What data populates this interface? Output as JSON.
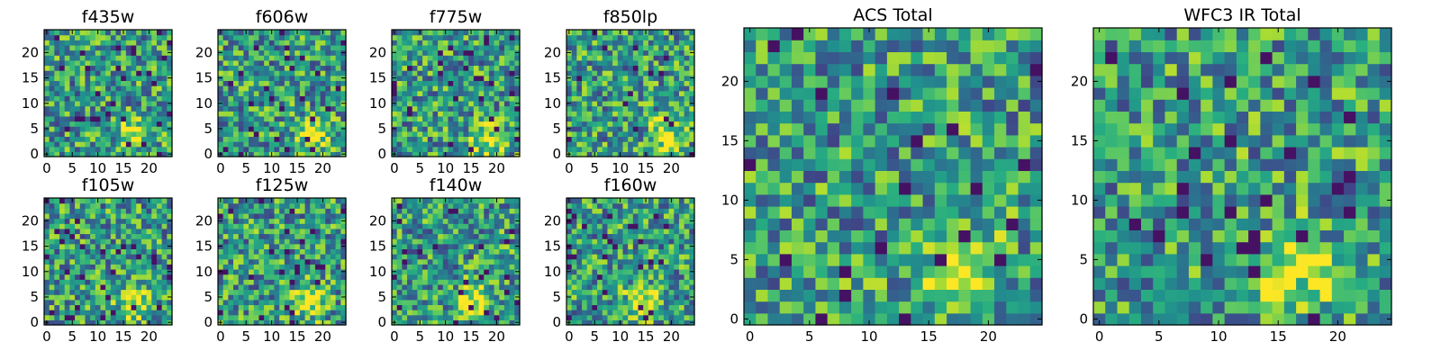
{
  "figure": {
    "colormap": "viridis",
    "background": "#ffffff"
  },
  "chart_data": [
    {
      "type": "heatmap",
      "title": "f435w",
      "grid": [
        25,
        25
      ],
      "xlim": [
        0,
        24
      ],
      "ylim": [
        0,
        24
      ],
      "xticks": [
        0,
        5,
        10,
        15,
        20
      ],
      "yticks": [
        0,
        5,
        10,
        15,
        20
      ],
      "bright_spot": [
        17,
        4
      ],
      "seed": 11
    },
    {
      "type": "heatmap",
      "title": "f606w",
      "grid": [
        25,
        25
      ],
      "xlim": [
        0,
        24
      ],
      "ylim": [
        0,
        24
      ],
      "xticks": [
        0,
        5,
        10,
        15,
        20
      ],
      "yticks": [
        0,
        5,
        10,
        15,
        20
      ],
      "bright_spot": [
        18,
        4
      ],
      "seed": 23
    },
    {
      "type": "heatmap",
      "title": "f775w",
      "grid": [
        25,
        25
      ],
      "xlim": [
        0,
        24
      ],
      "ylim": [
        0,
        24
      ],
      "xticks": [
        0,
        5,
        10,
        15,
        20
      ],
      "yticks": [
        0,
        5,
        10,
        15,
        20
      ],
      "bright_spot": [
        18,
        3
      ],
      "seed": 37
    },
    {
      "type": "heatmap",
      "title": "f850lp",
      "grid": [
        25,
        25
      ],
      "xlim": [
        0,
        24
      ],
      "ylim": [
        0,
        24
      ],
      "xticks": [
        0,
        5,
        10,
        15,
        20
      ],
      "yticks": [
        0,
        5,
        10,
        15,
        20
      ],
      "bright_spot": [
        19,
        4
      ],
      "seed": 41
    },
    {
      "type": "heatmap",
      "title": "f105w",
      "grid": [
        25,
        25
      ],
      "xlim": [
        0,
        24
      ],
      "ylim": [
        0,
        24
      ],
      "xticks": [
        0,
        5,
        10,
        15,
        20
      ],
      "yticks": [
        0,
        5,
        10,
        15,
        20
      ],
      "bright_spot": [
        17,
        4
      ],
      "seed": 53
    },
    {
      "type": "heatmap",
      "title": "f125w",
      "grid": [
        25,
        25
      ],
      "xlim": [
        0,
        24
      ],
      "ylim": [
        0,
        24
      ],
      "xticks": [
        0,
        5,
        10,
        15,
        20
      ],
      "yticks": [
        0,
        5,
        10,
        15,
        20
      ],
      "bright_spot": [
        17,
        4
      ],
      "seed": 67
    },
    {
      "type": "heatmap",
      "title": "f140w",
      "grid": [
        25,
        25
      ],
      "xlim": [
        0,
        24
      ],
      "ylim": [
        0,
        24
      ],
      "xticks": [
        0,
        5,
        10,
        15,
        20
      ],
      "yticks": [
        0,
        5,
        10,
        15,
        20
      ],
      "bright_spot": [
        15,
        4
      ],
      "seed": 71
    },
    {
      "type": "heatmap",
      "title": "f160w",
      "grid": [
        25,
        25
      ],
      "xlim": [
        0,
        24
      ],
      "ylim": [
        0,
        24
      ],
      "xticks": [
        0,
        5,
        10,
        15,
        20
      ],
      "yticks": [
        0,
        5,
        10,
        15,
        20
      ],
      "bright_spot": [
        14,
        4
      ],
      "seed": 83
    },
    {
      "type": "heatmap",
      "title": "ACS Total",
      "grid": [
        25,
        25
      ],
      "xlim": [
        0,
        24
      ],
      "ylim": [
        0,
        24
      ],
      "xticks": [
        0,
        5,
        10,
        15,
        20
      ],
      "yticks": [
        0,
        5,
        10,
        15,
        20
      ],
      "bright_spot": [
        18,
        4
      ],
      "seed": 97
    },
    {
      "type": "heatmap",
      "title": "WFC3 IR Total",
      "grid": [
        25,
        25
      ],
      "xlim": [
        0,
        24
      ],
      "ylim": [
        0,
        24
      ],
      "xticks": [
        0,
        5,
        10,
        15,
        20
      ],
      "yticks": [
        0,
        5,
        10,
        15,
        20
      ],
      "bright_spot": [
        16,
        4
      ],
      "seed": 101
    }
  ]
}
